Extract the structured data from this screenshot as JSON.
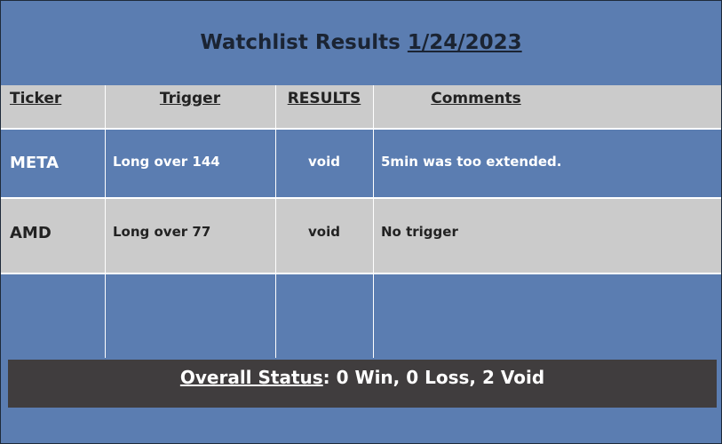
{
  "title": {
    "prefix": "Watchlist Results",
    "date": "1/24/2023"
  },
  "headers": {
    "ticker": "Ticker",
    "trigger": "Trigger",
    "results": "RESULTS",
    "comments": "Comments"
  },
  "rows": [
    {
      "ticker": "META",
      "trigger": "Long over 144",
      "result": "void",
      "comment": "5min was too extended."
    },
    {
      "ticker": "AMD",
      "trigger": "Long over 77",
      "result": "void",
      "comment": "No trigger"
    }
  ],
  "status": {
    "label": "Overall Status",
    "value": ": 0 Win, 0 Loss, 2 Void"
  }
}
